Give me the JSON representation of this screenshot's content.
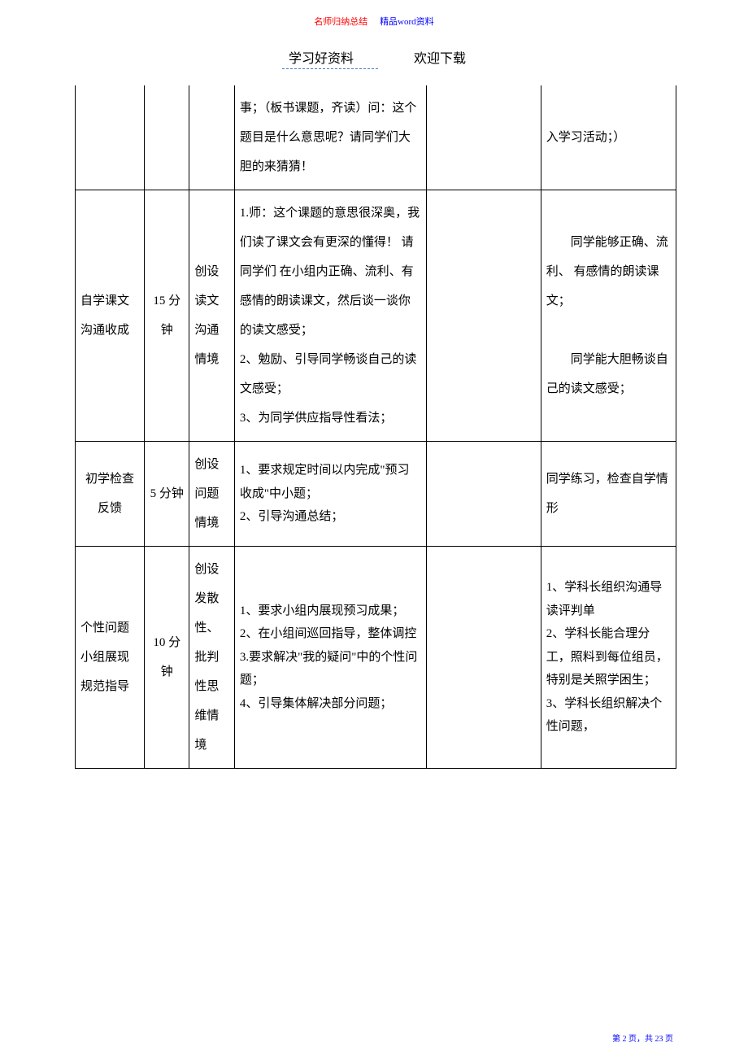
{
  "header": {
    "top_red": "名师归纳总结",
    "top_blue": "精品word资料",
    "sub_left": "学习好资料",
    "sub_right": "欢迎下载"
  },
  "rows": [
    {
      "c1": "",
      "c2": "",
      "c3": "",
      "c4": "事；（板书课题，齐读）问：这个题目是什么意思呢？请同学们大胆的来猜猜！",
      "c5": "",
      "c6": "入学习活动；）"
    },
    {
      "c1": "自学课文沟通收成",
      "c2": "15 分钟",
      "c3": "创设读文沟通情境",
      "c4": "1.师：这个课题的意思很深奥，我们读了课文会有更深的懂得！ 请同学们 在小组内正确、流利、有感情的朗读课文，然后谈一谈你的读文感受；\n2、勉励、引导同学畅谈自己的读文感受；\n3、为同学供应指导性看法；",
      "c5": "",
      "c6": "　　同学能够正确、流利、 有感情的朗读课文；\n\n　　同学能大胆畅谈自己的读文感受；"
    },
    {
      "c1": "初学检查反馈",
      "c2": "5 分钟",
      "c3": "创设问题情境",
      "c4": "1、要求规定时间以内完成\"预习收成\"中小题；\n2、引导沟通总结；",
      "c5": "",
      "c6": "同学练习，检查自学情形"
    },
    {
      "c1": "个性问题小组展现规范指导",
      "c2": "10 分钟",
      "c3": "创设发散性、批判性思维情境",
      "c4": "1、要求小组内展现预习成果；\n2、在小组间巡回指导，整体调控\n3.要求解决\"我的疑问\"中的个性问题；\n4、引导集体解决部分问题；",
      "c5": "",
      "c6": "1、学科长组织沟通导读评判单\n  2、学科长能合理分工，照料到每位组员，特别是关照学困生；\n3、学科长组织解决个性问题，"
    }
  ],
  "footer": "第 2 页，共 23 页"
}
